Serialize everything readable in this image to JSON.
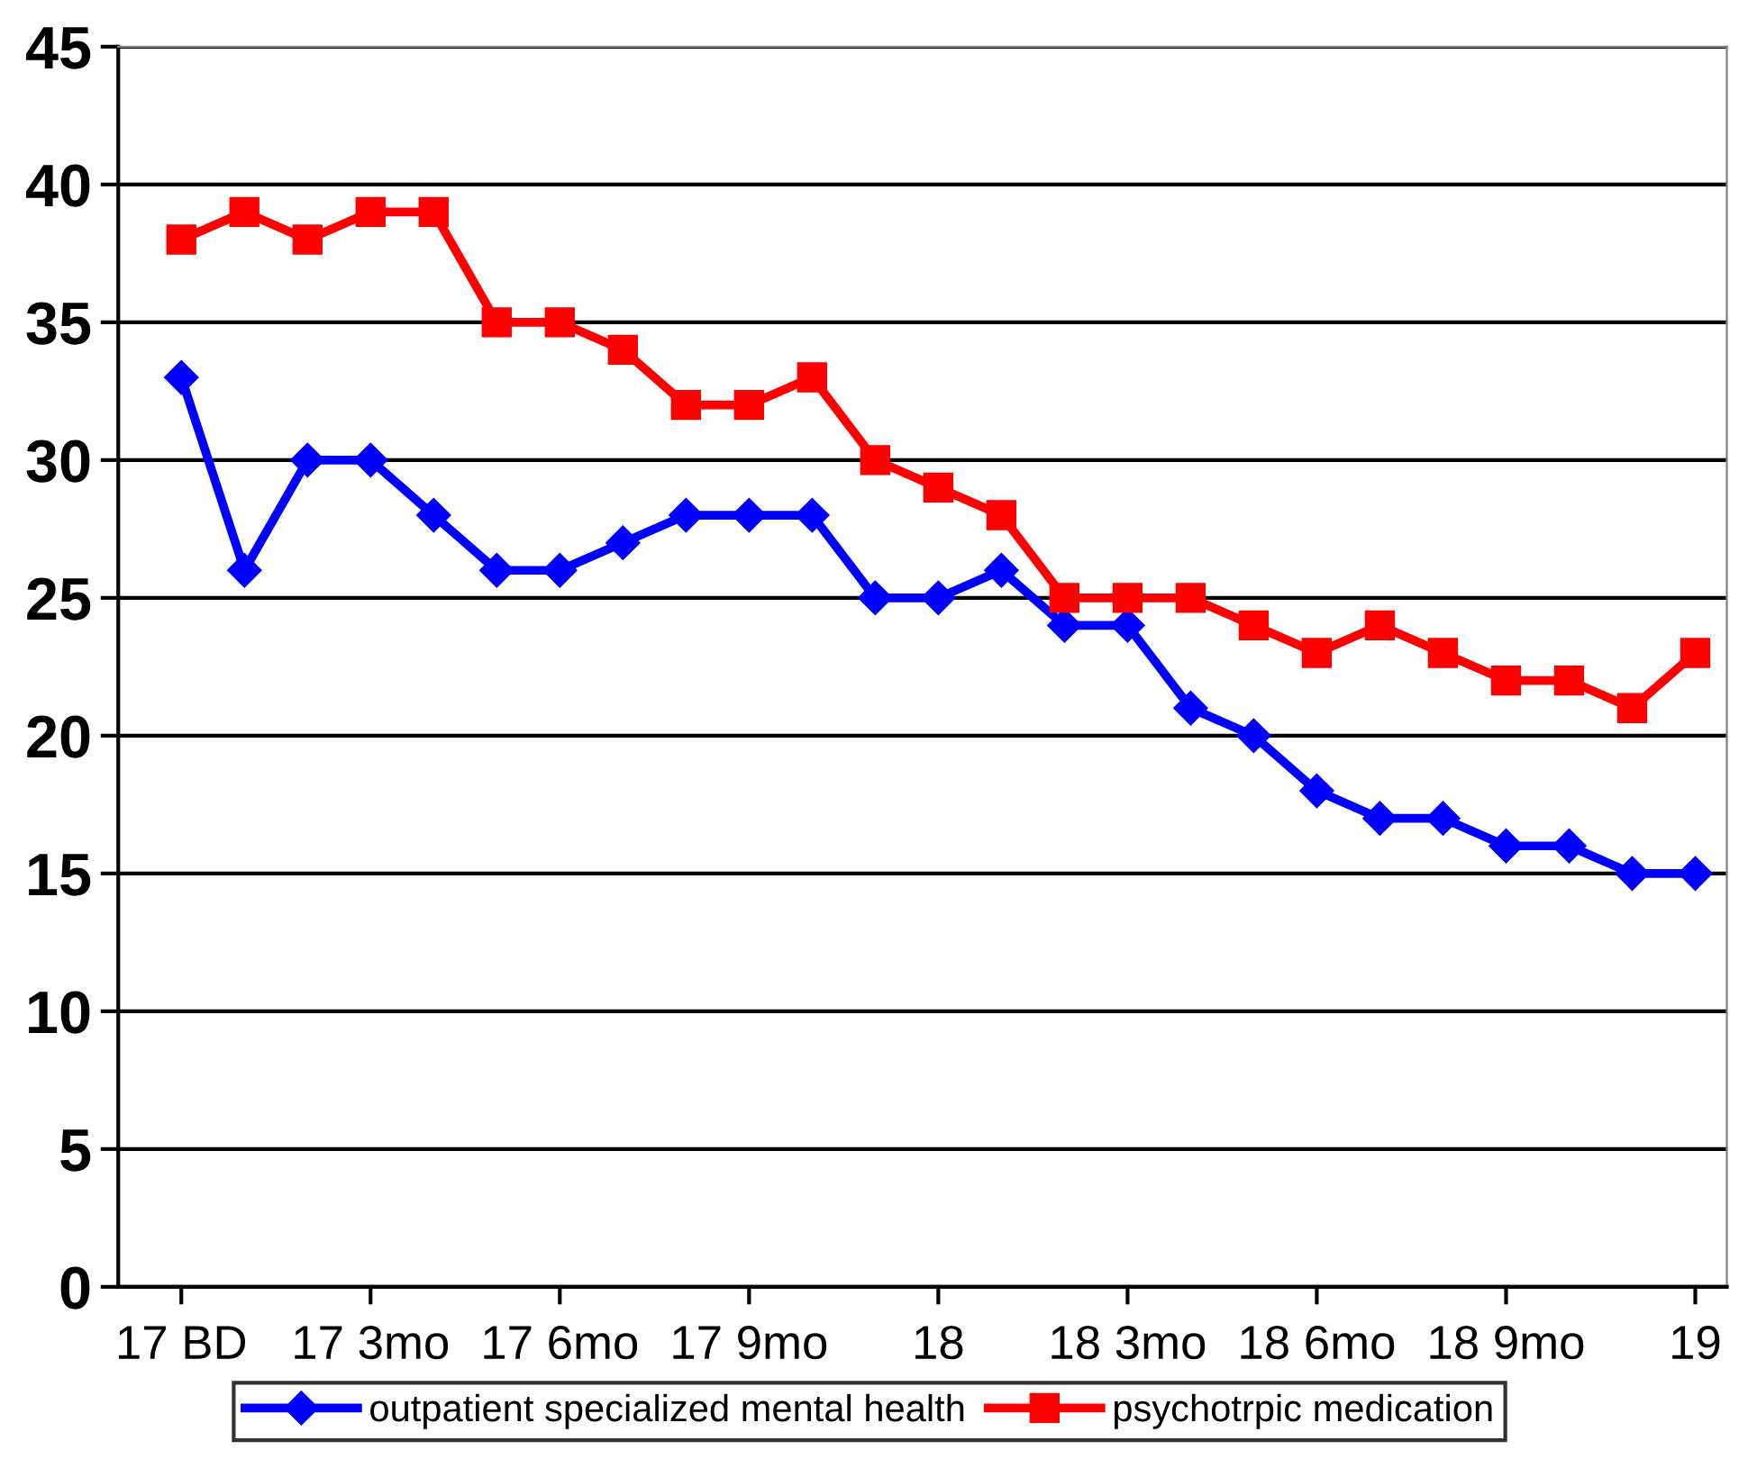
{
  "chart_data": {
    "type": "line",
    "categories": [
      "17 BD",
      null,
      null,
      "17 3mo",
      null,
      null,
      "17 6mo",
      null,
      null,
      "17 9mo",
      null,
      null,
      "18",
      null,
      null,
      "18 3mo",
      null,
      null,
      "18 6mo",
      null,
      null,
      "18 9mo",
      null,
      null,
      "19"
    ],
    "series": [
      {
        "name": "outpatient specialized mental health",
        "color": "#0000ff",
        "marker": "diamond",
        "values": [
          33,
          26,
          30,
          30,
          28,
          26,
          26,
          27,
          28,
          28,
          28,
          25,
          25,
          26,
          24,
          24,
          21,
          20,
          18,
          17,
          17,
          16,
          16,
          15,
          15
        ]
      },
      {
        "name": "psychotrpic medication",
        "color": "#ff0000",
        "marker": "square",
        "values": [
          38,
          39,
          38,
          39,
          39,
          35,
          35,
          34,
          32,
          32,
          33,
          30,
          29,
          28,
          25,
          25,
          25,
          24,
          23,
          24,
          23,
          22,
          22,
          21,
          23
        ]
      }
    ],
    "ylim": [
      0,
      45
    ],
    "yticks": [
      0,
      5,
      10,
      15,
      20,
      25,
      30,
      35,
      40,
      45
    ],
    "grid": "y",
    "legend": "bottom",
    "line_style": "solid"
  }
}
